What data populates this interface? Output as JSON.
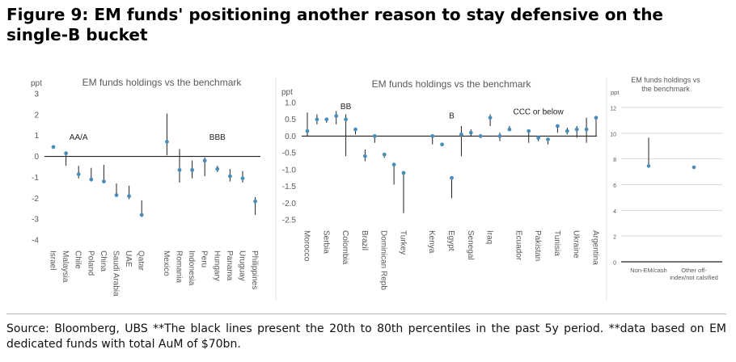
{
  "figure_title": "Figure 9: EM funds' positioning another reason to stay defensive on the single-B bucket",
  "source_note": "Source: Bloomberg, UBS **The black lines present the 20th to 80th percentiles in the past 5y period. **data based on EM dedicated funds with total AuM of $70bn.",
  "colors": {
    "marker": "#4a8db9",
    "range": "#222222",
    "axis": "#222222",
    "grid": "#d9d9d9",
    "text": "#595959"
  },
  "chart_data": [
    {
      "type": "scatter",
      "title": "EM funds holdings vs the benchmark",
      "ylabel": "ppt",
      "ylim": [
        -4,
        3
      ],
      "yticks": [
        3,
        2,
        1,
        0,
        -1,
        -2,
        -3,
        -4
      ],
      "grid": false,
      "categories": [
        "Israel",
        "Malaysia",
        "Chile",
        "Poland",
        "China",
        "Saudi Arabia",
        "UAE",
        "Qatar",
        "",
        "Mexico",
        "Romania",
        "Indonesia",
        "Peru",
        "Hungary",
        "Panama",
        "Uruguay",
        "Philippines"
      ],
      "values": [
        0.45,
        0.15,
        -0.85,
        -1.1,
        -1.2,
        -1.85,
        -1.9,
        -2.8,
        null,
        0.7,
        -0.65,
        -0.65,
        -0.2,
        -0.6,
        -0.95,
        -1.05,
        -2.15
      ],
      "range_low": [
        null,
        -0.45,
        -1.05,
        -1.2,
        -1.25,
        -1.95,
        -2.05,
        -2.9,
        null,
        0.05,
        -1.25,
        -1.05,
        -0.95,
        -0.75,
        -1.2,
        -1.25,
        -2.8
      ],
      "range_high": [
        null,
        0.15,
        -0.45,
        -0.55,
        -0.4,
        -1.3,
        -1.4,
        -2.1,
        null,
        2.05,
        0.35,
        -0.2,
        -0.05,
        -0.45,
        -0.6,
        -0.7,
        -1.95
      ],
      "annotations": [
        {
          "text": "AA/A",
          "x": "Chile",
          "y": 0.95
        },
        {
          "text": "BBB",
          "x": "Hungary",
          "y": 0.95
        }
      ]
    },
    {
      "type": "scatter",
      "title": "EM funds holdings vs the benchmark",
      "ylabel": "ppt",
      "ylim": [
        -2.5,
        1.0
      ],
      "yticks": [
        1.0,
        0.5,
        0.0,
        -0.5,
        -1.0,
        -1.5,
        -2.0,
        -2.5
      ],
      "ytick_labels": [
        "1.0",
        "0.5",
        "0.0",
        "-0.5",
        "-1.0",
        "-1.5",
        "-2.0",
        "-2.5"
      ],
      "grid": false,
      "categories": [
        "Morocco",
        "",
        "Serbia",
        "",
        "Colombia",
        "",
        "Brazil",
        "",
        "Dominican Repb",
        "",
        "Turkey",
        "",
        "",
        "Kenya",
        "",
        "Egypt",
        "",
        "Senegal",
        "",
        "Iraq",
        "",
        "",
        "Ecuador",
        "",
        "Pakistan",
        "",
        "Tunisia",
        "",
        "Ukraine",
        "",
        "Argentina"
      ],
      "values": [
        0.15,
        0.5,
        0.5,
        0.6,
        0.5,
        0.2,
        -0.6,
        0.0,
        -0.55,
        -0.85,
        -1.1,
        null,
        null,
        0.0,
        -0.25,
        -1.25,
        0.05,
        0.1,
        0.0,
        0.55,
        0.0,
        0.2,
        null,
        0.15,
        -0.05,
        -0.1,
        0.3,
        0.15,
        0.2,
        0.2,
        0.55
      ],
      "range_low": [
        0.0,
        0.35,
        0.4,
        0.35,
        -0.6,
        0.05,
        -0.75,
        -0.2,
        -0.65,
        -1.45,
        -2.3,
        null,
        null,
        -0.25,
        -0.3,
        -1.85,
        -0.6,
        0.0,
        -0.05,
        0.3,
        -0.15,
        0.15,
        null,
        -0.2,
        -0.15,
        -0.25,
        0.1,
        0.05,
        -0.05,
        -0.2,
        0.0
      ],
      "range_high": [
        0.7,
        0.65,
        0.55,
        0.75,
        0.65,
        0.25,
        -0.4,
        0.05,
        -0.5,
        -0.8,
        -1.05,
        null,
        null,
        0.05,
        -0.2,
        -1.2,
        0.3,
        0.2,
        0.05,
        0.65,
        0.1,
        0.3,
        null,
        0.2,
        0.0,
        -0.05,
        0.35,
        0.25,
        0.3,
        0.55,
        0.6
      ],
      "annotations": [
        {
          "text": "BB",
          "x": "Colombia",
          "y": 0.9
        },
        {
          "text": "B",
          "x": "Egypt",
          "y": 0.62
        },
        {
          "text": "CCC or below",
          "x": "Pakistan",
          "y": 0.75
        }
      ]
    },
    {
      "type": "scatter",
      "title": "EM funds holdings vs the benchmark",
      "ylabel": "ppt",
      "ylim": [
        0,
        12
      ],
      "yticks": [
        0,
        2,
        4,
        6,
        8,
        10,
        12
      ],
      "grid": true,
      "categories": [
        "Non-EM/cash",
        "Other off-index/not calsified"
      ],
      "values": [
        7.45,
        7.35
      ],
      "range_low": [
        7.45,
        null
      ],
      "range_high": [
        9.65,
        null
      ]
    }
  ]
}
